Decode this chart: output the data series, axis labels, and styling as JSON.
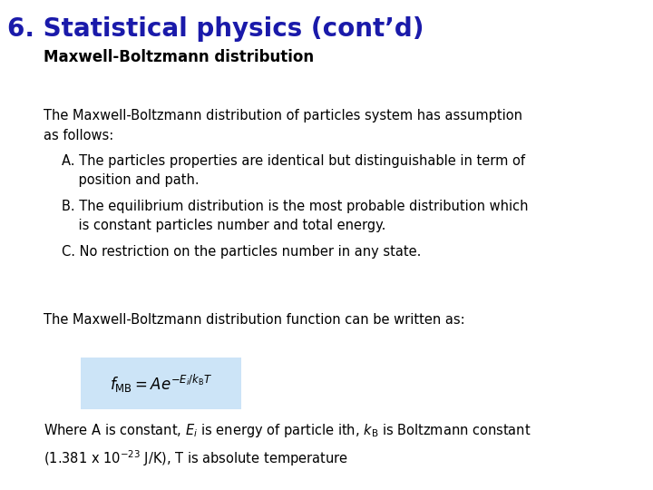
{
  "title": "6. Statistical physics (cont’d)",
  "title_color": "#1a1aaa",
  "title_fontsize": 20,
  "subtitle": "Maxwell-Boltzmann distribution",
  "subtitle_fontsize": 12,
  "subtitle_color": "#000000",
  "bg_color": "#ffffff",
  "body_text_1": "The Maxwell-Boltzmann distribution of particles system has assumption\nas follows:",
  "body_fontsize": 10.5,
  "list_items": [
    "A. The particles properties are identical but distinguishable in term of\n    position and path.",
    "B. The equilibrium distribution is the most probable distribution which\n    is constant particles number and total energy.",
    "C. No restriction on the particles number in any state."
  ],
  "list_fontsize": 10.5,
  "body_text_2": "The Maxwell-Boltzmann distribution function can be written as:",
  "formula": "$f_{\\mathrm{MB}} = Ae^{-E_i/k_{\\mathrm{B}}T}$",
  "formula_fontsize": 12,
  "formula_box_color": "#cce4f7",
  "footer_text": "Where A is constant, $E_i$ is energy of particle ith, $k_{\\mathrm{B}}$ is Boltzmann constant\n(1.381 x 10$^{-23}$ J/K), T is absolute temperature",
  "footer_fontsize": 10.5
}
